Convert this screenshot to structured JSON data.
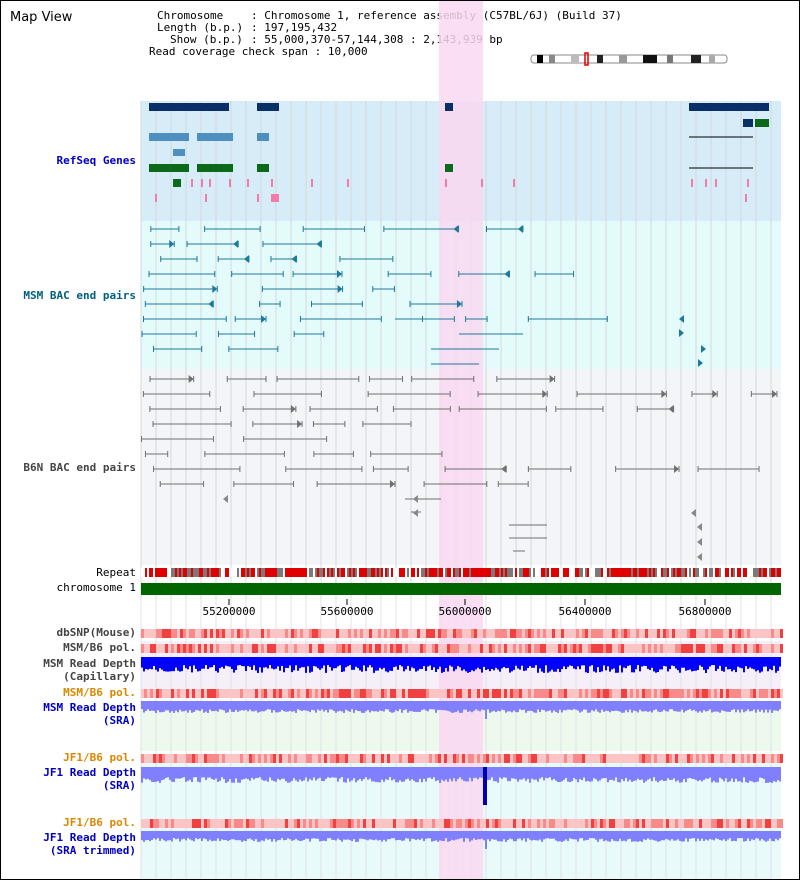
{
  "app": {
    "title": "Map View"
  },
  "header": {
    "chromosome_key": "Chromosome",
    "chromosome_value": "Chromosome 1, reference assembly (C57BL/6J) (Build 37)",
    "length_key": "Length (b.p.)",
    "length_value": "197,195,432",
    "show_key": "Show (b.p.)",
    "show_value": "55,000,370-57,144,308 : 2,143,939 bp",
    "coverage_key": "Read coverage check span",
    "coverage_value": "10,000"
  },
  "tracks": {
    "refseq": "RefSeq Genes",
    "msm_bac": "MSM BAC end pairs",
    "b6n_bac": "B6N BAC end pairs",
    "repeat": "Repeat",
    "chromosome": "chromosome 1",
    "dbsnp": "dbSNP(Mouse)",
    "msm_b6_pol_1": "MSM/B6 pol.",
    "msm_read_depth_cap_1": "MSM Read Depth",
    "msm_read_depth_cap_2": "(Capillary)",
    "msm_b6_pol_2": "MSM/B6 pol.",
    "msm_read_depth_sra_1": "MSM Read Depth",
    "msm_read_depth_sra_2": "(SRA)",
    "jf1_b6_pol_1": "JF1/B6 pol.",
    "jf1_read_depth_sra_1": "JF1 Read Depth",
    "jf1_read_depth_sra_2": "(SRA)",
    "jf1_b6_pol_2": "JF1/B6 pol.",
    "jf1_read_depth_trim_1": "JF1 Read Depth",
    "jf1_read_depth_trim_2": "(SRA trimmed)"
  },
  "axis": {
    "ticks": [
      "55200000",
      "55600000",
      "56000000",
      "56400000",
      "56800000"
    ]
  },
  "colors": {
    "refseq_bg": "#d6ecf8",
    "msm_bg": "#e4fbfc",
    "b6n_bg": "#f4f5f9",
    "highlight": "#f9d8f1",
    "label_blue": "#0000c0",
    "label_teal": "#006080",
    "label_orange": "#d98800",
    "chromosome_bar": "#006400",
    "repeat_red": "#e00000",
    "depth_blue": "#0000ff",
    "depth_light": "#8080ff"
  }
}
